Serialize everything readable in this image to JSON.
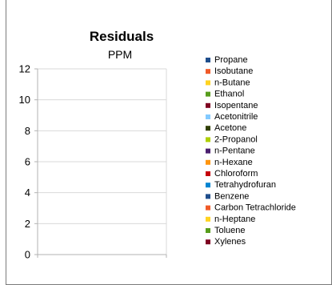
{
  "chart_data": {
    "type": "bar",
    "title": "Residuals",
    "subtitle": "PPM",
    "xlabel": "",
    "ylabel": "",
    "ylim": [
      0,
      12
    ],
    "yticks": [
      0,
      2,
      4,
      6,
      8,
      10,
      12
    ],
    "grid": true,
    "legend_position": "right",
    "series": [
      {
        "name": "Propane",
        "color": "#1f4e8c",
        "values": []
      },
      {
        "name": "Isobutane",
        "color": "#f05a28",
        "values": []
      },
      {
        "name": "n-Butane",
        "color": "#ffd320",
        "values": []
      },
      {
        "name": "Ethanol",
        "color": "#579d1c",
        "values": []
      },
      {
        "name": "Isopentane",
        "color": "#7e0021",
        "values": []
      },
      {
        "name": "Acetonitrile",
        "color": "#83caff",
        "values": []
      },
      {
        "name": "Acetone",
        "color": "#314004",
        "values": []
      },
      {
        "name": "2-Propanol",
        "color": "#aecf00",
        "values": []
      },
      {
        "name": "n-Pentane",
        "color": "#4b1f6f",
        "values": []
      },
      {
        "name": "n-Hexane",
        "color": "#ff950e",
        "values": []
      },
      {
        "name": "Chloroform",
        "color": "#c5000b",
        "values": []
      },
      {
        "name": "Tetrahydrofuran",
        "color": "#0084d1",
        "values": []
      },
      {
        "name": "Benzene",
        "color": "#1f4e8c",
        "values": []
      },
      {
        "name": "Carbon Tetrachloride",
        "color": "#f05a28",
        "values": []
      },
      {
        "name": "n-Heptane",
        "color": "#ffd320",
        "values": []
      },
      {
        "name": "Toluene",
        "color": "#579d1c",
        "values": []
      },
      {
        "name": "Xylenes",
        "color": "#7e0021",
        "values": []
      }
    ]
  }
}
